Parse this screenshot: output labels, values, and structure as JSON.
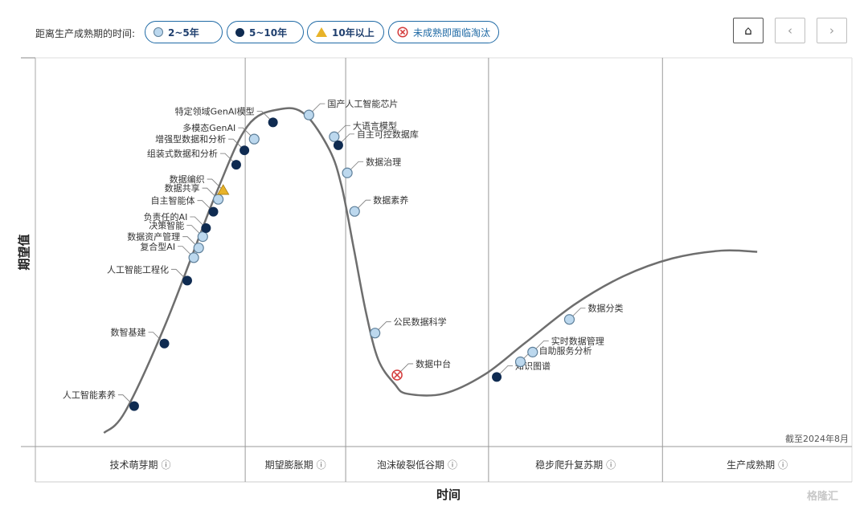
{
  "legend": {
    "title": "距离生产成熟期的时间:",
    "items": [
      {
        "key": "light",
        "label": "2~5年"
      },
      {
        "key": "dark",
        "label": "5~10年"
      },
      {
        "key": "triangle",
        "label": "10年以上"
      },
      {
        "key": "obsolete",
        "label": "未成熟即面临淘汰"
      }
    ]
  },
  "nav": {
    "home": "⌂",
    "prev": "‹",
    "next": "›"
  },
  "watermark": "格隆汇",
  "colors": {
    "curve": "#6e6e6e",
    "light_fill": "#bcd8ee",
    "light_stroke": "#5e7f99",
    "dark_fill": "#0f2b51",
    "triangle_fill": "#e8b329",
    "obsolete": "#d43b3b",
    "accent": "#1f6aa5"
  },
  "chart_data": {
    "type": "scatter",
    "title": "",
    "xlabel": "时间",
    "ylabel": "期望值",
    "note": "截至2024年8月",
    "grid": false,
    "legend_placement": "top",
    "phases": [
      {
        "label": "技术萌芽期",
        "info_icon": "ⓘ"
      },
      {
        "label": "期望膨胀期",
        "info_icon": "ⓘ"
      },
      {
        "label": "泡沫破裂低谷期",
        "info_icon": "ⓘ"
      },
      {
        "label": "稳步爬升复苏期",
        "info_icon": "ⓘ"
      },
      {
        "label": "生产成熟期",
        "info_icon": "ⓘ"
      }
    ],
    "phase_boundaries": [
      0.0,
      0.257,
      0.38,
      0.555,
      0.768,
      1.0
    ],
    "ylim": [
      0,
      1
    ],
    "curve": {
      "x": [
        0.084,
        0.11,
        0.16,
        0.22,
        0.26,
        0.3,
        0.33,
        0.36,
        0.375,
        0.39,
        0.405,
        0.42,
        0.44,
        0.455,
        0.5,
        0.55,
        0.6,
        0.66,
        0.72,
        0.78,
        0.84,
        0.884
      ],
      "y": [
        0.035,
        0.09,
        0.318,
        0.644,
        0.825,
        0.868,
        0.855,
        0.764,
        0.67,
        0.509,
        0.344,
        0.223,
        0.161,
        0.136,
        0.136,
        0.185,
        0.267,
        0.365,
        0.438,
        0.484,
        0.504,
        0.501
      ]
    },
    "series": [
      {
        "name": "2~5年",
        "marker": "light"
      },
      {
        "name": "5~10年",
        "marker": "dark"
      },
      {
        "name": "10年以上",
        "marker": "triangle"
      },
      {
        "name": "未成熟即面临淘汰",
        "marker": "obsolete"
      }
    ],
    "points": [
      {
        "label": "人工智能素养",
        "x": 0.121,
        "y": 0.104,
        "marker": "dark",
        "side": "left"
      },
      {
        "label": "数智基建",
        "x": 0.158,
        "y": 0.265,
        "marker": "dark",
        "side": "left"
      },
      {
        "label": "人工智能工程化",
        "x": 0.186,
        "y": 0.427,
        "marker": "dark",
        "side": "left"
      },
      {
        "label": "复合型AI",
        "x": 0.194,
        "y": 0.486,
        "marker": "light",
        "side": "left"
      },
      {
        "label": "数据资产管理",
        "x": 0.2,
        "y": 0.511,
        "marker": "light",
        "side": "left"
      },
      {
        "label": "决策智能",
        "x": 0.205,
        "y": 0.54,
        "marker": "light",
        "side": "left"
      },
      {
        "label": "负责任的AI",
        "x": 0.209,
        "y": 0.562,
        "marker": "dark",
        "side": "left"
      },
      {
        "label": "自主智能体",
        "x": 0.218,
        "y": 0.604,
        "marker": "dark",
        "side": "left"
      },
      {
        "label": "数据共享",
        "x": 0.224,
        "y": 0.636,
        "marker": "light",
        "side": "left"
      },
      {
        "label": "数据编织",
        "x": 0.23,
        "y": 0.659,
        "marker": "triangle",
        "side": "left"
      },
      {
        "label": "组装式数据和分析",
        "x": 0.246,
        "y": 0.725,
        "marker": "dark",
        "side": "left"
      },
      {
        "label": "增强型数据和分析",
        "x": 0.256,
        "y": 0.762,
        "marker": "dark",
        "side": "left"
      },
      {
        "label": "多模态GenAI",
        "x": 0.268,
        "y": 0.791,
        "marker": "light",
        "side": "left"
      },
      {
        "label": "特定领域GenAI模型",
        "x": 0.291,
        "y": 0.834,
        "marker": "dark",
        "side": "left"
      },
      {
        "label": "国产人工智能芯片",
        "x": 0.335,
        "y": 0.853,
        "marker": "light",
        "side": "right"
      },
      {
        "label": "大语言模型",
        "x": 0.366,
        "y": 0.797,
        "marker": "light",
        "side": "right"
      },
      {
        "label": "自主可控数据库",
        "x": 0.371,
        "y": 0.775,
        "marker": "dark",
        "side": "right"
      },
      {
        "label": "数据治理",
        "x": 0.382,
        "y": 0.704,
        "marker": "light",
        "side": "right"
      },
      {
        "label": "数据素养",
        "x": 0.391,
        "y": 0.605,
        "marker": "light",
        "side": "right"
      },
      {
        "label": "公民数据科学",
        "x": 0.416,
        "y": 0.292,
        "marker": "light",
        "side": "right"
      },
      {
        "label": "数据中台",
        "x": 0.443,
        "y": 0.184,
        "marker": "obsolete",
        "side": "right"
      },
      {
        "label": "知识图谱",
        "x": 0.565,
        "y": 0.179,
        "marker": "dark",
        "side": "right"
      },
      {
        "label": "自助服务分析",
        "x": 0.594,
        "y": 0.218,
        "marker": "light",
        "side": "right"
      },
      {
        "label": "实时数据管理",
        "x": 0.609,
        "y": 0.243,
        "marker": "light",
        "side": "right"
      },
      {
        "label": "数据分类",
        "x": 0.654,
        "y": 0.327,
        "marker": "light",
        "side": "right"
      }
    ]
  }
}
